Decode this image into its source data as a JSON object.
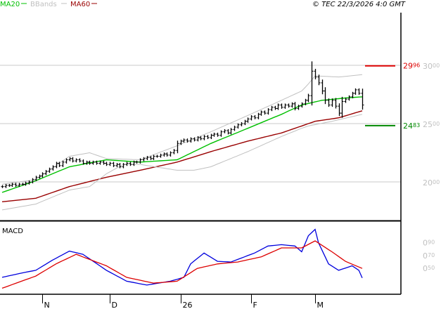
{
  "legend": [
    {
      "label": "MA20",
      "color": "#00c000"
    },
    {
      "label": "BBands",
      "color": "#c0c0c0"
    },
    {
      "label": "MA60",
      "color": "#990000"
    }
  ],
  "copyright": "© TEC 22/3/2026 4:0 GMT",
  "chart_data": [
    {
      "type": "ohlc",
      "panel": "price",
      "ylim": [
        16.75,
        34.4
      ],
      "y_ticks": [
        "30.00",
        "25.00",
        "20.00"
      ],
      "y_tick_values": [
        30,
        25,
        20
      ],
      "grid": true,
      "x_ticks": [
        "N",
        "D",
        "26",
        "F",
        "M"
      ],
      "x_tick_bars": [
        12,
        32,
        53,
        74,
        93
      ],
      "closes": [
        19.6,
        19.7,
        19.7,
        19.8,
        19.7,
        19.8,
        19.8,
        19.9,
        20.0,
        20.2,
        20.4,
        20.5,
        20.7,
        20.9,
        21.1,
        21.3,
        21.6,
        21.4,
        21.7,
        21.9,
        22.0,
        21.8,
        21.9,
        21.8,
        21.6,
        21.7,
        21.6,
        21.7,
        21.6,
        21.7,
        21.6,
        21.5,
        21.6,
        21.4,
        21.5,
        21.3,
        21.5,
        21.6,
        21.5,
        21.7,
        21.7,
        21.9,
        22.0,
        22.1,
        22.0,
        22.2,
        22.2,
        22.3,
        22.4,
        22.3,
        22.5,
        22.7,
        23.3,
        23.5,
        23.6,
        23.5,
        23.7,
        23.6,
        23.8,
        23.7,
        23.9,
        23.8,
        24.0,
        24.1,
        24.0,
        24.3,
        24.4,
        24.2,
        24.5,
        24.7,
        24.9,
        25.0,
        25.2,
        25.4,
        25.6,
        25.5,
        25.8,
        26.0,
        25.9,
        26.2,
        26.4,
        26.3,
        26.6,
        26.4,
        26.6,
        26.5,
        26.7,
        26.3,
        26.5,
        26.7,
        27.0,
        27.4,
        29.5,
        29.0,
        28.5,
        27.8,
        27.0,
        26.6,
        27.0,
        26.5,
        25.9,
        26.9,
        27.1,
        27.3,
        27.6,
        27.9,
        27.6,
        26.6
      ],
      "series": [
        {
          "name": "MA20",
          "color": "#00c000",
          "points": [
            [
              0,
              19.1
            ],
            [
              10,
              20.1
            ],
            [
              20,
              21.3
            ],
            [
              31,
              21.9
            ],
            [
              41,
              21.7
            ],
            [
              52,
              21.9
            ],
            [
              62,
              23.3
            ],
            [
              73,
              24.6
            ],
            [
              83,
              25.8
            ],
            [
              89,
              26.6
            ],
            [
              95,
              27.0
            ],
            [
              102,
              27.2
            ],
            [
              107,
              27.3
            ]
          ]
        },
        {
          "name": "MA60",
          "color": "#990000",
          "points": [
            [
              0,
              18.3
            ],
            [
              10,
              18.6
            ],
            [
              20,
              19.6
            ],
            [
              31,
              20.4
            ],
            [
              41,
              21.0
            ],
            [
              52,
              21.7
            ],
            [
              62,
              22.6
            ],
            [
              73,
              23.5
            ],
            [
              83,
              24.2
            ],
            [
              93,
              25.2
            ],
            [
              100,
              25.5
            ],
            [
              107,
              26.1
            ]
          ]
        },
        {
          "name": "BBands upper",
          "color": "#c0c0c0",
          "points": [
            [
              0,
              19.8
            ],
            [
              10,
              20.2
            ],
            [
              20,
              22.2
            ],
            [
              26,
              22.5
            ],
            [
              31,
              22.0
            ],
            [
              41,
              21.9
            ],
            [
              52,
              23.1
            ],
            [
              62,
              24.3
            ],
            [
              73,
              25.7
            ],
            [
              83,
              27.0
            ],
            [
              89,
              27.8
            ],
            [
              91,
              28.4
            ],
            [
              93,
              29.1
            ],
            [
              100,
              29.0
            ],
            [
              107,
              29.2
            ]
          ]
        },
        {
          "name": "BBands lower",
          "color": "#c0c0c0",
          "points": [
            [
              0,
              17.6
            ],
            [
              10,
              18.1
            ],
            [
              20,
              19.3
            ],
            [
              26,
              19.6
            ],
            [
              31,
              20.7
            ],
            [
              36,
              21.5
            ],
            [
              41,
              21.5
            ],
            [
              52,
              21.0
            ],
            [
              57,
              21.0
            ],
            [
              62,
              21.3
            ],
            [
              73,
              22.6
            ],
            [
              83,
              23.9
            ],
            [
              89,
              24.6
            ],
            [
              91,
              24.8
            ],
            [
              98,
              25.2
            ],
            [
              107,
              25.8
            ]
          ]
        }
      ],
      "levels": [
        {
          "label": "29.96",
          "value": 29.96,
          "color": "#dd0000"
        },
        {
          "label": "24.83",
          "value": 24.83,
          "color": "#008800"
        }
      ]
    },
    {
      "type": "line",
      "panel": "macd",
      "title": "MACD",
      "ylim": [
        0.096,
        1.226
      ],
      "y_ticks": [
        "0.90",
        "0.70",
        "0.50"
      ],
      "y_tick_values": [
        0.9,
        0.7,
        0.5
      ],
      "series": [
        {
          "color": "#0000dd",
          "points": [
            [
              0,
              0.36
            ],
            [
              6,
              0.43
            ],
            [
              10,
              0.47
            ],
            [
              15,
              0.63
            ],
            [
              20,
              0.77
            ],
            [
              24,
              0.72
            ],
            [
              31,
              0.47
            ],
            [
              37,
              0.3
            ],
            [
              43,
              0.24
            ],
            [
              50,
              0.3
            ],
            [
              54,
              0.36
            ],
            [
              56,
              0.57
            ],
            [
              60,
              0.74
            ],
            [
              64,
              0.61
            ],
            [
              68,
              0.6
            ],
            [
              75,
              0.74
            ],
            [
              79,
              0.85
            ],
            [
              83,
              0.87
            ],
            [
              87,
              0.85
            ],
            [
              89,
              0.76
            ],
            [
              91,
              1.01
            ],
            [
              93,
              1.11
            ],
            [
              94,
              0.9
            ],
            [
              97,
              0.57
            ],
            [
              100,
              0.47
            ],
            [
              104,
              0.54
            ],
            [
              106,
              0.47
            ],
            [
              107,
              0.35
            ]
          ]
        },
        {
          "color": "#dd0000",
          "points": [
            [
              0,
              0.19
            ],
            [
              10,
              0.38
            ],
            [
              16,
              0.57
            ],
            [
              22,
              0.72
            ],
            [
              31,
              0.54
            ],
            [
              37,
              0.36
            ],
            [
              45,
              0.27
            ],
            [
              52,
              0.3
            ],
            [
              58,
              0.5
            ],
            [
              64,
              0.57
            ],
            [
              70,
              0.6
            ],
            [
              77,
              0.68
            ],
            [
              83,
              0.82
            ],
            [
              89,
              0.82
            ],
            [
              93,
              0.93
            ],
            [
              98,
              0.76
            ],
            [
              102,
              0.61
            ],
            [
              107,
              0.5
            ]
          ]
        }
      ]
    }
  ]
}
